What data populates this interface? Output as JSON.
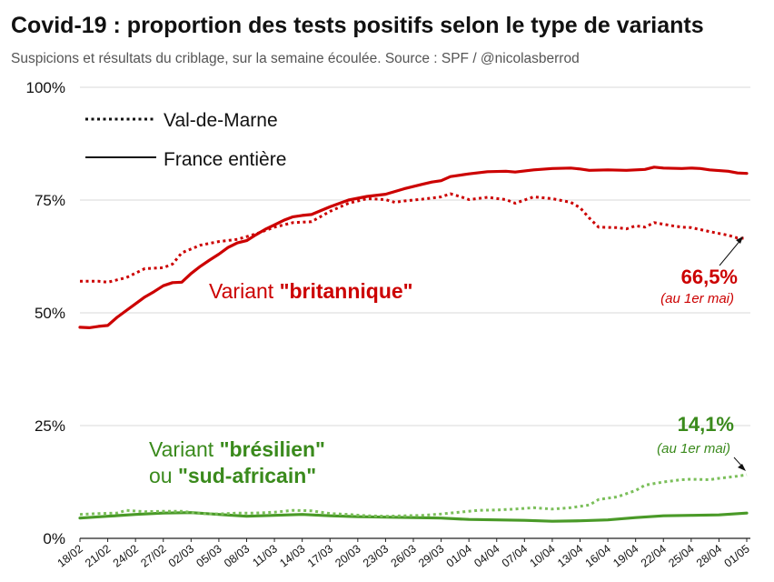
{
  "title": "Covid-19 : proportion des tests positifs selon le type de variants",
  "subtitle": "Suspicions et résultats du criblage, sur la semaine écoulée. Source : SPF / @nicolasberrod",
  "chart_data": {
    "type": "line",
    "ylim": [
      0,
      100
    ],
    "yticks": [
      "0%",
      "25%",
      "50%",
      "75%",
      "100%"
    ],
    "ytick_values": [
      0,
      25,
      50,
      75,
      100
    ],
    "x_count": 73,
    "xticks": [
      {
        "label": "18/02",
        "i": 0
      },
      {
        "label": "21/02",
        "i": 3
      },
      {
        "label": "24/02",
        "i": 6
      },
      {
        "label": "27/02",
        "i": 9
      },
      {
        "label": "02/03",
        "i": 12
      },
      {
        "label": "05/03",
        "i": 15
      },
      {
        "label": "08/03",
        "i": 18
      },
      {
        "label": "11/03",
        "i": 21
      },
      {
        "label": "14/03",
        "i": 24
      },
      {
        "label": "17/03",
        "i": 27
      },
      {
        "label": "20/03",
        "i": 30
      },
      {
        "label": "23/03",
        "i": 33
      },
      {
        "label": "26/03",
        "i": 36
      },
      {
        "label": "29/03",
        "i": 39
      },
      {
        "label": "01/04",
        "i": 42
      },
      {
        "label": "04/04",
        "i": 45
      },
      {
        "label": "07/04",
        "i": 48
      },
      {
        "label": "10/04",
        "i": 51
      },
      {
        "label": "13/04",
        "i": 54
      },
      {
        "label": "16/04",
        "i": 57
      },
      {
        "label": "19/04",
        "i": 60
      },
      {
        "label": "22/04",
        "i": 63
      },
      {
        "label": "25/04",
        "i": 66
      },
      {
        "label": "28/04",
        "i": 69
      },
      {
        "label": "01/05",
        "i": 72
      }
    ],
    "legend": [
      {
        "label": "Val-de-Marne",
        "style": "dotted"
      },
      {
        "label": "France entière",
        "style": "solid"
      }
    ],
    "series": [
      {
        "name": "Variant britannique – France entière",
        "color": "#cc0000",
        "style": "solid",
        "points": [
          [
            0,
            46.8
          ],
          [
            1,
            46.7
          ],
          [
            2,
            47
          ],
          [
            3,
            47.2
          ],
          [
            4,
            49
          ],
          [
            5,
            50.5
          ],
          [
            6,
            52
          ],
          [
            7,
            53.5
          ],
          [
            8,
            54.7
          ],
          [
            9,
            56
          ],
          [
            10,
            56.7
          ],
          [
            11,
            56.8
          ],
          [
            12,
            58.7
          ],
          [
            13,
            60.3
          ],
          [
            14,
            61.7
          ],
          [
            15,
            63
          ],
          [
            16,
            64.5
          ],
          [
            17,
            65.5
          ],
          [
            18,
            66
          ],
          [
            19,
            67.3
          ],
          [
            20,
            68.5
          ],
          [
            21,
            69.5
          ],
          [
            22,
            70.5
          ],
          [
            23,
            71.3
          ],
          [
            24,
            71.6
          ],
          [
            25,
            71.8
          ],
          [
            27,
            73.5
          ],
          [
            29,
            75
          ],
          [
            31,
            75.8
          ],
          [
            33,
            76.3
          ],
          [
            35,
            77.5
          ],
          [
            37,
            78.5
          ],
          [
            38,
            79
          ],
          [
            39,
            79.3
          ],
          [
            40,
            80.2
          ],
          [
            42,
            80.8
          ],
          [
            44,
            81.3
          ],
          [
            46,
            81.4
          ],
          [
            47,
            81.2
          ],
          [
            49,
            81.7
          ],
          [
            51,
            82
          ],
          [
            53,
            82.1
          ],
          [
            54,
            81.9
          ],
          [
            55,
            81.6
          ],
          [
            57,
            81.7
          ],
          [
            59,
            81.6
          ],
          [
            61,
            81.8
          ],
          [
            62,
            82.3
          ],
          [
            63,
            82.1
          ],
          [
            65,
            82
          ],
          [
            66,
            82.1
          ],
          [
            67,
            82
          ],
          [
            68,
            81.7
          ],
          [
            70,
            81.4
          ],
          [
            71,
            81
          ],
          [
            72,
            80.9
          ]
        ]
      },
      {
        "name": "Variant britannique – Val-de-Marne",
        "color": "#cc0000",
        "style": "dotted",
        "points": [
          [
            0,
            57
          ],
          [
            2,
            57
          ],
          [
            3,
            56.8
          ],
          [
            5,
            57.8
          ],
          [
            7,
            59.8
          ],
          [
            9,
            60
          ],
          [
            10,
            60.8
          ],
          [
            11,
            63.3
          ],
          [
            13,
            65
          ],
          [
            15,
            65.8
          ],
          [
            17,
            66.3
          ],
          [
            19,
            67.5
          ],
          [
            21,
            69
          ],
          [
            23,
            70
          ],
          [
            25,
            70.2
          ],
          [
            27,
            72.5
          ],
          [
            29,
            74.3
          ],
          [
            31,
            75.3
          ],
          [
            33,
            75.1
          ],
          [
            34,
            74.5
          ],
          [
            35,
            74.8
          ],
          [
            37,
            75.2
          ],
          [
            39,
            75.7
          ],
          [
            40,
            76.4
          ],
          [
            41,
            75.8
          ],
          [
            42,
            75.1
          ],
          [
            44,
            75.6
          ],
          [
            46,
            75.1
          ],
          [
            47,
            74.3
          ],
          [
            49,
            75.7
          ],
          [
            51,
            75.3
          ],
          [
            53,
            74.5
          ],
          [
            54,
            73.3
          ],
          [
            55,
            71
          ],
          [
            56,
            69
          ],
          [
            58,
            68.9
          ],
          [
            59,
            68.6
          ],
          [
            60,
            69.3
          ],
          [
            61,
            69
          ],
          [
            62,
            70
          ],
          [
            64,
            69.3
          ],
          [
            65,
            69
          ],
          [
            66,
            68.9
          ],
          [
            68,
            68
          ],
          [
            70,
            67.2
          ],
          [
            71,
            66.6
          ],
          [
            72,
            66.5
          ]
        ]
      },
      {
        "name": "Variant brésilien ou sud-africain – France entière",
        "color": "#4a9a28",
        "style": "solid",
        "points": [
          [
            0,
            4.5
          ],
          [
            3,
            4.9
          ],
          [
            6,
            5.3
          ],
          [
            9,
            5.6
          ],
          [
            12,
            5.7
          ],
          [
            15,
            5.3
          ],
          [
            18,
            4.9
          ],
          [
            21,
            5.1
          ],
          [
            24,
            5.3
          ],
          [
            27,
            5
          ],
          [
            30,
            4.8
          ],
          [
            33,
            4.7
          ],
          [
            36,
            4.6
          ],
          [
            39,
            4.5
          ],
          [
            42,
            4.2
          ],
          [
            45,
            4.1
          ],
          [
            48,
            4
          ],
          [
            51,
            3.8
          ],
          [
            54,
            3.9
          ],
          [
            57,
            4.1
          ],
          [
            60,
            4.6
          ],
          [
            63,
            5
          ],
          [
            66,
            5.1
          ],
          [
            69,
            5.2
          ],
          [
            72,
            5.6
          ]
        ]
      },
      {
        "name": "Variant brésilien ou sud-africain – Val-de-Marne",
        "color": "#7bbf5a",
        "style": "dotted",
        "points": [
          [
            0,
            5.3
          ],
          [
            2,
            5.5
          ],
          [
            4,
            5.6
          ],
          [
            5,
            6.2
          ],
          [
            7,
            5.9
          ],
          [
            9,
            6
          ],
          [
            11,
            6
          ],
          [
            13,
            5.5
          ],
          [
            15,
            5.4
          ],
          [
            17,
            5.6
          ],
          [
            19,
            5.6
          ],
          [
            21,
            5.8
          ],
          [
            23,
            6.2
          ],
          [
            25,
            6.1
          ],
          [
            27,
            5.5
          ],
          [
            29,
            5.3
          ],
          [
            31,
            5
          ],
          [
            33,
            4.9
          ],
          [
            35,
            5
          ],
          [
            37,
            5.1
          ],
          [
            39,
            5.4
          ],
          [
            41,
            5.8
          ],
          [
            43,
            6.2
          ],
          [
            45,
            6.3
          ],
          [
            47,
            6.5
          ],
          [
            49,
            6.8
          ],
          [
            51,
            6.5
          ],
          [
            53,
            6.8
          ],
          [
            55,
            7.4
          ],
          [
            56,
            8.6
          ],
          [
            58,
            9.2
          ],
          [
            60,
            10.6
          ],
          [
            61,
            11.8
          ],
          [
            63,
            12.5
          ],
          [
            65,
            13
          ],
          [
            66,
            13.1
          ],
          [
            68,
            13
          ],
          [
            69,
            13.3
          ],
          [
            71,
            13.8
          ],
          [
            72,
            14.1
          ]
        ]
      }
    ],
    "annotations": {
      "british_label_prefix": "Variant ",
      "british_label_bold": "\"britannique\"",
      "british_value": "66,5%",
      "british_note": "(au 1er mai)",
      "brazil_label_prefix": "Variant ",
      "brazil_label_bold": "\"brésilien\"",
      "brazil_label2_prefix": "ou ",
      "brazil_label2_bold": "\"sud-africain\"",
      "brazil_value": "14,1%",
      "brazil_note": "(au 1er mai)"
    }
  }
}
